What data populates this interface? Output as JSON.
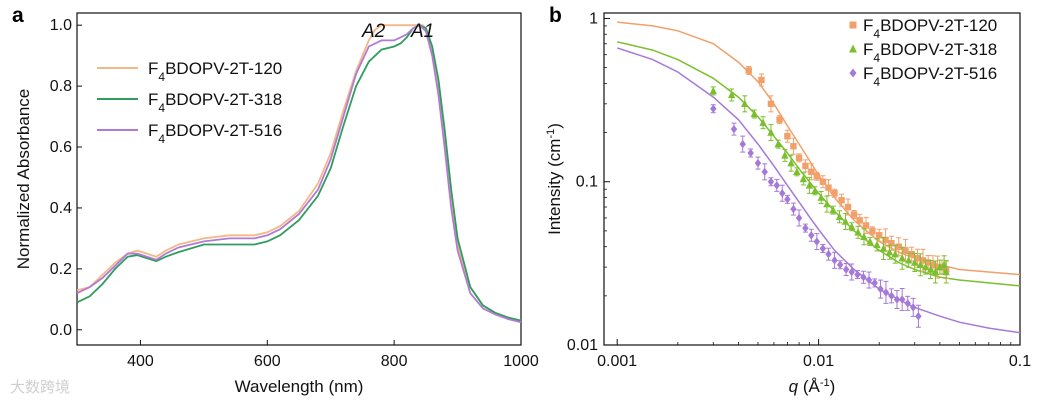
{
  "chart_data": [
    {
      "panel": "a",
      "type": "line",
      "xlabel": "Wavelength (nm)",
      "ylabel": "Normalized Absorbance",
      "xlim": [
        300,
        1000
      ],
      "ylim": [
        -0.05,
        1.04
      ],
      "xticks": [
        "400",
        "600",
        "800",
        "1000"
      ],
      "xtick_values": [
        400,
        600,
        800,
        1000
      ],
      "yticks": [
        "0.0",
        "0.2",
        "0.4",
        "0.6",
        "0.8",
        "1.0"
      ],
      "ytick_values": [
        0,
        0.2,
        0.4,
        0.6,
        0.8,
        1.0
      ],
      "legend_position": "top-left",
      "annotations": [
        {
          "text": "A2",
          "x": 775,
          "y": 1.03
        },
        {
          "text": "A1",
          "x": 840,
          "y": 1.03
        }
      ],
      "series": [
        {
          "name": "F4BDOPV-2T-120",
          "prefix": "F",
          "sub": "4",
          "suffix": "BDOPV-2T-120",
          "color": "#f3b886",
          "x": [
            300,
            320,
            340,
            360,
            380,
            395,
            410,
            425,
            440,
            460,
            500,
            540,
            580,
            600,
            620,
            650,
            680,
            700,
            720,
            740,
            760,
            770,
            780,
            790,
            800,
            810,
            820,
            830,
            840,
            845,
            850,
            860,
            870,
            880,
            890,
            900,
            920,
            940,
            960,
            980,
            1000
          ],
          "y": [
            0.13,
            0.14,
            0.18,
            0.22,
            0.25,
            0.26,
            0.25,
            0.24,
            0.26,
            0.28,
            0.3,
            0.31,
            0.31,
            0.32,
            0.34,
            0.39,
            0.48,
            0.58,
            0.72,
            0.85,
            0.95,
            0.985,
            1.0,
            1.0,
            1.0,
            1.0,
            1.0,
            1.0,
            1.0,
            1.0,
            0.99,
            0.92,
            0.8,
            0.62,
            0.43,
            0.28,
            0.14,
            0.08,
            0.055,
            0.04,
            0.03
          ]
        },
        {
          "name": "F4BDOPV-2T-318",
          "prefix": "F",
          "sub": "4",
          "suffix": "BDOPV-2T-318",
          "color": "#2e9d5e",
          "x": [
            300,
            320,
            340,
            360,
            380,
            395,
            410,
            425,
            440,
            460,
            500,
            540,
            580,
            600,
            620,
            650,
            680,
            700,
            720,
            740,
            760,
            780,
            800,
            810,
            820,
            830,
            840,
            850,
            860,
            870,
            880,
            890,
            900,
            920,
            940,
            960,
            980,
            1000
          ],
          "y": [
            0.09,
            0.11,
            0.15,
            0.2,
            0.24,
            0.245,
            0.235,
            0.225,
            0.24,
            0.255,
            0.28,
            0.28,
            0.28,
            0.29,
            0.31,
            0.36,
            0.44,
            0.53,
            0.67,
            0.8,
            0.88,
            0.92,
            0.93,
            0.94,
            0.96,
            0.99,
            1.0,
            0.99,
            0.93,
            0.82,
            0.65,
            0.46,
            0.3,
            0.14,
            0.08,
            0.055,
            0.04,
            0.03
          ]
        },
        {
          "name": "F4BDOPV-2T-516",
          "prefix": "F",
          "sub": "4",
          "suffix": "BDOPV-2T-516",
          "color": "#b27ad6",
          "x": [
            300,
            320,
            340,
            360,
            380,
            395,
            410,
            425,
            440,
            460,
            500,
            540,
            580,
            600,
            620,
            650,
            680,
            700,
            720,
            740,
            760,
            780,
            800,
            810,
            820,
            830,
            840,
            850,
            860,
            870,
            880,
            890,
            900,
            920,
            940,
            960,
            980,
            1000
          ],
          "y": [
            0.12,
            0.14,
            0.17,
            0.21,
            0.25,
            0.25,
            0.24,
            0.23,
            0.25,
            0.27,
            0.29,
            0.3,
            0.3,
            0.31,
            0.33,
            0.38,
            0.46,
            0.56,
            0.7,
            0.84,
            0.93,
            0.95,
            0.95,
            0.96,
            0.97,
            0.99,
            1.0,
            0.98,
            0.9,
            0.77,
            0.59,
            0.4,
            0.26,
            0.12,
            0.07,
            0.05,
            0.035,
            0.025
          ]
        }
      ]
    },
    {
      "panel": "b",
      "type": "scatter",
      "xscale": "log",
      "yscale": "log",
      "xlabel_var": "q",
      "xlabel_unit_pre": " (Å",
      "xlabel_unit_sup": "-1",
      "xlabel_unit_post": ")",
      "ylabel_pre": "Intensity (cm",
      "ylabel_sup": "-1",
      "ylabel_post": ")",
      "xlim": [
        0.00086,
        0.1
      ],
      "ylim": [
        0.01,
        1.08
      ],
      "xticks": [
        "0.001",
        "0.01",
        "0.1"
      ],
      "xtick_values": [
        0.001,
        0.01,
        0.1
      ],
      "yticks": [
        "0.01",
        "0.1",
        "1"
      ],
      "ytick_values": [
        0.01,
        0.1,
        1
      ],
      "legend_position": "top-right",
      "series": [
        {
          "name": "F4BDOPV-2T-120",
          "prefix": "F",
          "sub": "4",
          "suffix": "BDOPV-2T-120",
          "color": "#f2a06a",
          "marker": "square",
          "points_q": [
            0.0045,
            0.0052,
            0.0058,
            0.0064,
            0.007,
            0.0075,
            0.008,
            0.0086,
            0.0092,
            0.0098,
            0.0105,
            0.0112,
            0.012,
            0.013,
            0.014,
            0.015,
            0.016,
            0.0172,
            0.0185,
            0.02,
            0.0215,
            0.023,
            0.025,
            0.027,
            0.029,
            0.031,
            0.033,
            0.035,
            0.037,
            0.039,
            0.041,
            0.043
          ],
          "points_I": [
            0.48,
            0.42,
            0.3,
            0.24,
            0.19,
            0.165,
            0.14,
            0.125,
            0.115,
            0.108,
            0.1,
            0.092,
            0.085,
            0.077,
            0.07,
            0.063,
            0.058,
            0.054,
            0.05,
            0.047,
            0.044,
            0.042,
            0.04,
            0.038,
            0.036,
            0.034,
            0.033,
            0.032,
            0.031,
            0.03,
            0.03,
            0.029
          ],
          "fit_q": [
            0.001,
            0.0015,
            0.002,
            0.003,
            0.004,
            0.005,
            0.006,
            0.007,
            0.008,
            0.009,
            0.01,
            0.012,
            0.015,
            0.02,
            0.025,
            0.03,
            0.04,
            0.05,
            0.07,
            0.1
          ],
          "fit_I": [
            0.95,
            0.9,
            0.84,
            0.7,
            0.54,
            0.41,
            0.3,
            0.22,
            0.17,
            0.135,
            0.11,
            0.08,
            0.058,
            0.043,
            0.037,
            0.034,
            0.031,
            0.029,
            0.028,
            0.027
          ]
        },
        {
          "name": "F4BDOPV-2T-318",
          "prefix": "F",
          "sub": "4",
          "suffix": "BDOPV-2T-318",
          "color": "#7cbf2e",
          "marker": "triangle",
          "points_q": [
            0.003,
            0.0037,
            0.0043,
            0.0048,
            0.0053,
            0.0058,
            0.0063,
            0.0068,
            0.0073,
            0.0078,
            0.0084,
            0.009,
            0.0096,
            0.0103,
            0.011,
            0.0118,
            0.0127,
            0.0136,
            0.0146,
            0.0157,
            0.0168,
            0.018,
            0.0195,
            0.021,
            0.0225,
            0.024,
            0.026,
            0.028,
            0.03,
            0.032,
            0.034,
            0.036,
            0.038,
            0.04,
            0.042,
            0.043
          ],
          "points_I": [
            0.36,
            0.34,
            0.3,
            0.26,
            0.23,
            0.2,
            0.17,
            0.145,
            0.13,
            0.115,
            0.104,
            0.095,
            0.088,
            0.08,
            0.073,
            0.067,
            0.061,
            0.057,
            0.053,
            0.049,
            0.046,
            0.043,
            0.041,
            0.039,
            0.037,
            0.036,
            0.034,
            0.033,
            0.032,
            0.031,
            0.03,
            0.029,
            0.028,
            0.03,
            0.031,
            0.028
          ],
          "fit_q": [
            0.001,
            0.0015,
            0.002,
            0.003,
            0.004,
            0.005,
            0.006,
            0.007,
            0.008,
            0.009,
            0.01,
            0.012,
            0.015,
            0.02,
            0.025,
            0.03,
            0.04,
            0.05,
            0.07,
            0.1
          ],
          "fit_I": [
            0.72,
            0.64,
            0.56,
            0.43,
            0.33,
            0.25,
            0.19,
            0.15,
            0.12,
            0.1,
            0.085,
            0.066,
            0.05,
            0.038,
            0.032,
            0.029,
            0.026,
            0.025,
            0.024,
            0.023
          ]
        },
        {
          "name": "F4BDOPV-2T-516",
          "prefix": "F",
          "sub": "4",
          "suffix": "BDOPV-2T-516",
          "color": "#a679d8",
          "marker": "diamond",
          "points_q": [
            0.003,
            0.0038,
            0.0042,
            0.0046,
            0.005,
            0.0054,
            0.0058,
            0.0062,
            0.0066,
            0.007,
            0.0075,
            0.008,
            0.0086,
            0.0092,
            0.0098,
            0.0105,
            0.0112,
            0.012,
            0.0128,
            0.0137,
            0.0146,
            0.0156,
            0.0167,
            0.0178,
            0.019,
            0.0203,
            0.0216,
            0.023,
            0.0245,
            0.026,
            0.0277,
            0.0295,
            0.0313
          ],
          "points_I": [
            0.28,
            0.21,
            0.17,
            0.15,
            0.13,
            0.115,
            0.1,
            0.095,
            0.085,
            0.078,
            0.068,
            0.06,
            0.052,
            0.047,
            0.043,
            0.039,
            0.036,
            0.033,
            0.031,
            0.029,
            0.028,
            0.027,
            0.026,
            0.025,
            0.024,
            0.022,
            0.021,
            0.02,
            0.019,
            0.019,
            0.018,
            0.017,
            0.015
          ],
          "fit_q": [
            0.001,
            0.0015,
            0.002,
            0.003,
            0.004,
            0.005,
            0.006,
            0.007,
            0.008,
            0.009,
            0.01,
            0.012,
            0.015,
            0.02,
            0.025,
            0.03,
            0.04,
            0.05,
            0.07,
            0.1
          ],
          "fit_I": [
            0.66,
            0.56,
            0.47,
            0.33,
            0.24,
            0.17,
            0.125,
            0.095,
            0.075,
            0.061,
            0.051,
            0.038,
            0.029,
            0.022,
            0.019,
            0.017,
            0.015,
            0.0138,
            0.0127,
            0.0119
          ]
        }
      ]
    }
  ],
  "labels": {
    "panel_a": "a",
    "panel_b": "b"
  },
  "watermark": "大数跨境"
}
